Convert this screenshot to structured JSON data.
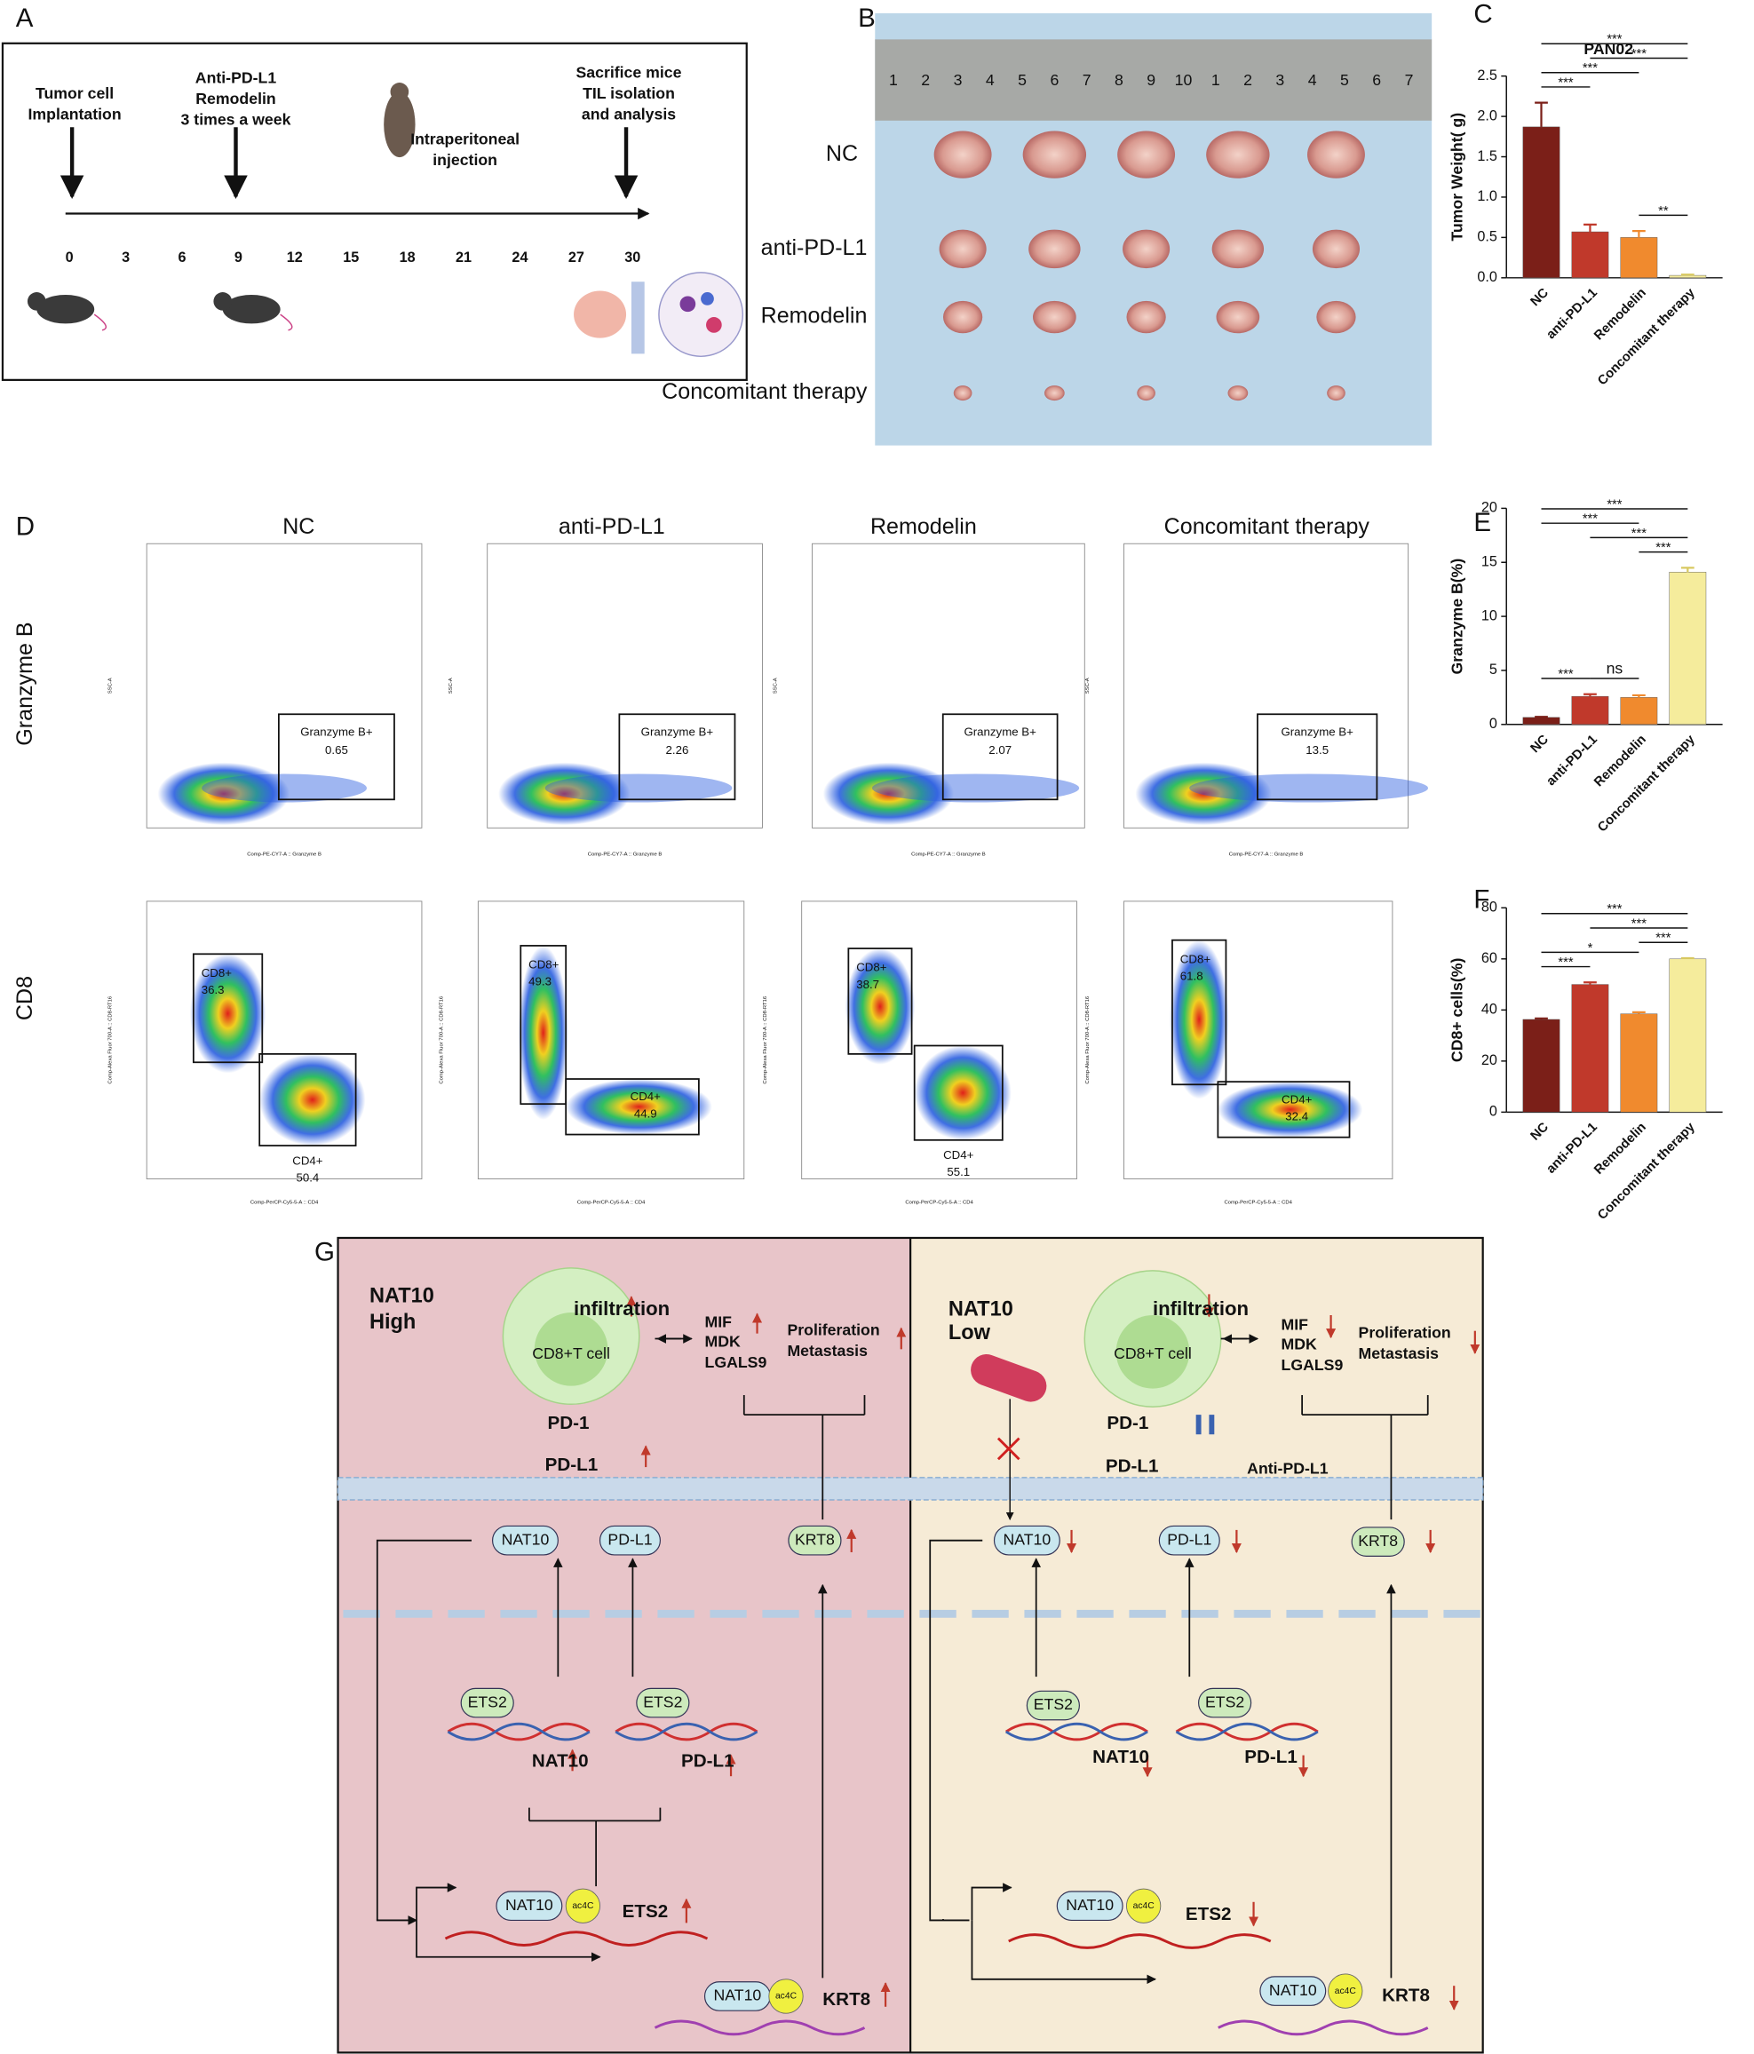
{
  "chart_data": [
    {
      "type": "bar",
      "label": "C",
      "title": "PAN02",
      "y_label": "Tumor Weight( g)",
      "categories": [
        "NC",
        "anti-PD-L1",
        "Remodelin",
        "Concomitant therapy"
      ],
      "values": [
        1.87,
        0.57,
        0.5,
        0.03
      ],
      "errors": [
        0.3,
        0.09,
        0.08,
        0.01
      ],
      "colors": [
        "#7b1f18",
        "#c0392b",
        "#f08a2e",
        "#f5ec9c"
      ],
      "ylim": [
        0,
        2.5
      ],
      "yticks": [
        {
          "value": 0,
          "label": "0.0"
        },
        {
          "value": 0.5,
          "label": "0.5"
        },
        {
          "value": 1,
          "label": "1.0"
        },
        {
          "value": 1.5,
          "label": "1.5"
        },
        {
          "value": 2,
          "label": "2.0"
        },
        {
          "value": 2.5,
          "label": "2.5"
        }
      ],
      "significance": [
        {
          "pair": [
            0,
            3
          ],
          "label": "***"
        },
        {
          "pair": [
            0,
            2
          ],
          "label": "***"
        },
        {
          "pair": [
            0,
            1
          ],
          "label": "***"
        },
        {
          "pair": [
            1,
            3
          ],
          "label": "***"
        },
        {
          "pair": [
            2,
            3
          ],
          "label": "**"
        }
      ]
    },
    {
      "type": "bar",
      "label": "E",
      "y_label": "Granzyme B(%)",
      "categories": [
        "NC",
        "anti-PD-L1",
        "Remodelin",
        "Concomitant therapy"
      ],
      "values": [
        0.65,
        2.6,
        2.5,
        14.1
      ],
      "errors": [
        0.05,
        0.2,
        0.2,
        0.4
      ],
      "colors": [
        "#7b1f18",
        "#c0392b",
        "#f08a2e",
        "#f5ec9c"
      ],
      "ylim": [
        0,
        20
      ],
      "yticks": [
        0,
        5,
        10,
        15,
        20
      ],
      "significance": [
        {
          "pair": [
            0,
            3
          ],
          "label": "***"
        },
        {
          "pair": [
            1,
            3
          ],
          "label": "***"
        },
        {
          "pair": [
            2,
            3
          ],
          "label": "***"
        },
        {
          "pair": [
            0,
            2
          ],
          "label": "***"
        },
        {
          "pair": [
            0,
            1
          ],
          "label": "***"
        },
        {
          "pair": [
            1,
            2
          ],
          "label": "ns"
        }
      ]
    },
    {
      "type": "bar",
      "label": "F",
      "y_label": "CD8+ cells(%)",
      "categories": [
        "NC",
        "anti-PD-L1",
        "Remodelin",
        "Concomitant therapy"
      ],
      "values": [
        36.3,
        50,
        38.5,
        60
      ],
      "errors": [
        0.4,
        0.8,
        0.6,
        0.3
      ],
      "colors": [
        "#7b1f18",
        "#c0392b",
        "#f08a2e",
        "#f5ec9c"
      ],
      "ylim": [
        0,
        80
      ],
      "yticks": [
        0,
        20,
        40,
        60,
        80
      ],
      "significance": [
        {
          "pair": [
            0,
            3
          ],
          "label": "***"
        },
        {
          "pair": [
            0,
            2
          ],
          "label": "*"
        },
        {
          "pair": [
            2,
            3
          ],
          "label": "***"
        },
        {
          "pair": [
            0,
            1
          ],
          "label": "***"
        },
        {
          "pair": [
            1,
            3
          ],
          "label": "***"
        }
      ]
    }
  ],
  "timeline": {
    "label": "A",
    "events": [
      [
        "Tumor cell",
        "Implantation"
      ],
      [
        "Anti-PD-L1",
        "Remodelin",
        "3 times a week"
      ],
      [
        "Intraperitoneal",
        "injection"
      ],
      [
        "Sacrifice mice",
        "TIL isolation",
        "and analysis"
      ]
    ],
    "days": [
      0,
      3,
      6,
      9,
      12,
      15,
      18,
      21,
      24,
      27,
      30
    ]
  },
  "photo": {
    "label": "B",
    "rows": [
      "NC",
      "anti-PD-L1",
      "Remodelin",
      "Concomitant therapy"
    ],
    "ruler": [
      1,
      2,
      3,
      4,
      5,
      6,
      7,
      8,
      9,
      10,
      1,
      2,
      3,
      4,
      5,
      6,
      7
    ]
  },
  "flow": {
    "label": "D",
    "columns": [
      "NC",
      "anti-PD-L1",
      "Remodelin",
      "Concomitant therapy"
    ],
    "rows": [
      "Granzyme B",
      "CD8"
    ],
    "granzyme": {
      "gate": "Granzyme B+",
      "values": [
        0.65,
        2.26,
        2.07,
        13.5
      ],
      "x_label": "Comp-PE-CY7-A :: Granzyme B",
      "y_label": "SSC-A"
    },
    "cd8": {
      "gate_cd8": "CD8+",
      "gate_cd4": "CD4+",
      "cd8_values": [
        36.3,
        49.3,
        38.7,
        61.8
      ],
      "cd4_values": [
        50.4,
        44.9,
        55.1,
        32.4
      ],
      "x_label": "Comp-PerCP-Cy5-5-A :: CD4",
      "y_label": "Comp-Alexa Fluor 700-A :: CD8-RT16"
    }
  },
  "diagram": {
    "label": "G",
    "left": [
      "NAT10",
      "High",
      "infiltration",
      "CD8+T cell",
      "MIF",
      "MDK",
      "LGALS9",
      "Proliferation",
      "Metastasis",
      "PD-1",
      "PD-L1",
      "NAT10",
      "PD-L1",
      "KRT8",
      "ETS2",
      "ETS2",
      "NAT10",
      "PD-L1",
      "NAT10",
      "ac4C",
      "ETS2",
      "NAT10",
      "ac4C",
      "KRT8"
    ],
    "right": [
      "NAT10",
      "Low",
      "infiltration",
      "CD8+T cell",
      "MIF",
      "MDK",
      "LGALS9",
      "Proliferation",
      "Metastasis",
      "PD-1",
      "PD-L1",
      "Anti-PD-L1",
      "NAT10",
      "PD-L1",
      "KRT8",
      "ETS2",
      "ETS2",
      "NAT10",
      "PD-L1",
      "NAT10",
      "ac4C",
      "ETS2",
      "NAT10",
      "ac4C",
      "KRT8"
    ]
  }
}
